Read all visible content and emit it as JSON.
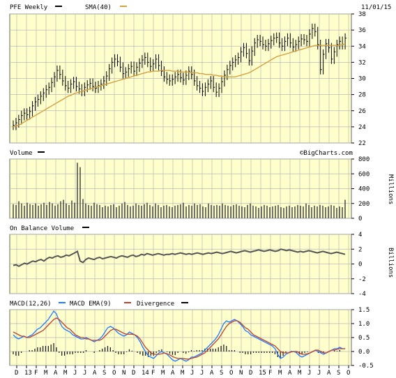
{
  "header": {
    "ticker_label": "PFE Weekly",
    "sma_label": "SMA(40)",
    "date": "11/01/15"
  },
  "panels": {
    "volume": {
      "label": "Volume",
      "unit": "Millions",
      "credit": "©BigCharts.com"
    },
    "obv": {
      "label": "On Balance Volume",
      "unit": "Billions"
    },
    "macd": {
      "label_macd": "MACD(12,26)",
      "label_ema": "MACD EMA(9)",
      "label_div": "Divergence"
    }
  },
  "colors": {
    "plot_bg": "#ffffcc",
    "grid": "#b8b8b8",
    "price": "#000000",
    "sma": "#d4a040",
    "volume": "#444444",
    "obv": "#555555",
    "macd": "#1e7cff",
    "macd_ema": "#c04030",
    "divergence": "#111111"
  },
  "chart_data": [
    {
      "type": "ohlc",
      "title": "PFE Weekly",
      "x_ticks": [
        "D",
        "13",
        "F",
        "M",
        "A",
        "M",
        "J",
        "J",
        "A",
        "S",
        "O",
        "N",
        "D",
        "14",
        "F",
        "M",
        "A",
        "M",
        "J",
        "J",
        "A",
        "S",
        "O",
        "N",
        "D",
        "15",
        "F",
        "M",
        "A",
        "M",
        "J",
        "J",
        "A",
        "S",
        "O"
      ],
      "ylim": [
        22,
        38
      ],
      "y_ticks": [
        22,
        24,
        26,
        28,
        30,
        32,
        34,
        36,
        38
      ],
      "series": [
        {
          "name": "PFE Weekly",
          "kind": "weekly_close",
          "values": [
            24.2,
            24.5,
            24.9,
            25.4,
            25.7,
            25.5,
            25.9,
            26.6,
            27.1,
            27.4,
            27.8,
            28.2,
            28.6,
            28.9,
            29.5,
            30.2,
            31.0,
            30.5,
            29.7,
            29.1,
            28.8,
            29.3,
            29.6,
            29.0,
            28.7,
            28.4,
            28.9,
            29.2,
            29.4,
            29.0,
            28.8,
            29.1,
            29.3,
            29.7,
            30.3,
            31.2,
            32.0,
            32.4,
            32.1,
            31.4,
            30.6,
            30.8,
            31.2,
            31.5,
            30.9,
            31.4,
            31.9,
            32.3,
            32.6,
            32.0,
            31.5,
            31.8,
            32.4,
            31.6,
            30.9,
            30.2,
            29.9,
            29.7,
            29.9,
            30.2,
            30.5,
            30.1,
            29.8,
            30.4,
            30.9,
            30.5,
            29.7,
            29.1,
            28.8,
            28.4,
            28.9,
            29.3,
            29.7,
            28.9,
            28.3,
            28.8,
            29.6,
            30.4,
            31.1,
            31.6,
            32.0,
            32.3,
            32.6,
            33.3,
            33.8,
            33.1,
            32.2,
            33.4,
            34.4,
            34.8,
            34.6,
            34.2,
            34.0,
            34.3,
            34.7,
            35.0,
            35.1,
            34.4,
            34.0,
            34.6,
            35.0,
            34.4,
            33.9,
            34.2,
            34.6,
            34.9,
            34.8,
            34.6,
            35.5,
            36.2,
            35.8,
            34.2,
            31.1,
            33.0,
            34.3,
            33.8,
            32.4,
            33.3,
            34.2,
            34.6,
            34.2,
            35.0
          ]
        },
        {
          "name": "SMA(40)",
          "values": [
            24.0,
            24.1,
            24.2,
            24.4,
            24.6,
            24.8,
            25.0,
            25.2,
            25.4,
            25.6,
            25.8,
            26.0,
            26.2,
            26.4,
            26.6,
            26.8,
            27.0,
            27.2,
            27.4,
            27.6,
            27.8,
            27.9,
            28.1,
            28.2,
            28.3,
            28.4,
            28.5,
            28.6,
            28.7,
            28.8,
            28.9,
            29.0,
            29.1,
            29.2,
            29.3,
            29.4,
            29.5,
            29.6,
            29.7,
            29.8,
            29.9,
            30.0,
            30.1,
            30.2,
            30.3,
            30.4,
            30.5,
            30.6,
            30.7,
            30.8,
            30.8,
            30.9,
            30.9,
            30.9,
            31.0,
            31.0,
            31.0,
            31.0,
            30.9,
            30.9,
            30.9,
            30.8,
            30.8,
            30.8,
            30.8,
            30.7,
            30.7,
            30.7,
            30.6,
            30.6,
            30.5,
            30.5,
            30.5,
            30.4,
            30.4,
            30.3,
            30.3,
            30.2,
            30.2,
            30.2,
            30.2,
            30.2,
            30.3,
            30.4,
            30.5,
            30.6,
            30.7,
            30.9,
            31.1,
            31.3,
            31.5,
            31.7,
            31.9,
            32.1,
            32.3,
            32.5,
            32.7,
            32.8,
            32.9,
            33.0,
            33.1,
            33.2,
            33.3,
            33.4,
            33.5,
            33.6,
            33.7,
            33.8,
            33.9,
            34.0,
            34.1,
            34.1,
            34.1,
            34.1,
            34.1,
            34.1,
            34.1,
            34.1,
            34.1,
            34.1,
            34.2,
            34.3
          ]
        }
      ]
    },
    {
      "type": "bar",
      "title": "Volume",
      "ylabel": "Millions",
      "ylim": [
        0,
        800
      ],
      "y_ticks": [
        0,
        200,
        400,
        600,
        800
      ],
      "values": [
        190,
        180,
        230,
        200,
        170,
        210,
        190,
        180,
        200,
        170,
        190,
        210,
        180,
        220,
        200,
        170,
        190,
        230,
        250,
        200,
        180,
        240,
        210,
        750,
        690,
        260,
        200,
        180,
        170,
        210,
        190,
        180,
        150,
        170,
        160,
        180,
        190,
        150,
        170,
        200,
        220,
        180,
        160,
        170,
        200,
        180,
        170,
        190,
        210,
        180,
        160,
        200,
        180,
        150,
        170,
        180,
        160,
        150,
        170,
        180,
        190,
        210,
        160,
        180,
        170,
        200,
        180,
        190,
        160,
        150,
        200,
        180,
        170,
        180,
        170,
        200,
        180,
        170,
        160,
        180,
        190,
        170,
        160,
        150,
        180,
        200,
        170,
        160,
        140,
        160,
        180,
        170,
        150,
        160,
        170,
        180,
        150,
        140,
        160,
        170,
        150,
        160,
        180,
        170,
        160,
        200,
        180,
        150,
        170,
        160,
        180,
        170,
        150,
        160,
        180,
        170,
        140,
        160,
        150,
        250
      ]
    },
    {
      "type": "line",
      "title": "On Balance Volume",
      "ylabel": "Billions",
      "ylim": [
        -4,
        4
      ],
      "y_ticks": [
        -4,
        -2,
        0,
        2,
        4
      ],
      "values": [
        -0.2,
        -0.1,
        -0.3,
        -0.1,
        0.1,
        0.0,
        0.2,
        0.4,
        0.3,
        0.5,
        0.6,
        0.4,
        0.7,
        0.9,
        0.8,
        1.0,
        1.1,
        0.9,
        1.0,
        1.2,
        1.1,
        1.3,
        1.5,
        1.7,
        0.4,
        0.2,
        0.6,
        0.8,
        0.7,
        0.6,
        0.8,
        0.9,
        0.7,
        0.8,
        0.9,
        1.0,
        0.9,
        0.8,
        1.0,
        1.1,
        1.0,
        0.9,
        1.1,
        1.2,
        1.0,
        1.1,
        1.3,
        1.2,
        1.4,
        1.3,
        1.2,
        1.3,
        1.4,
        1.3,
        1.2,
        1.3,
        1.3,
        1.4,
        1.3,
        1.4,
        1.5,
        1.4,
        1.3,
        1.4,
        1.3,
        1.4,
        1.5,
        1.4,
        1.3,
        1.4,
        1.5,
        1.4,
        1.5,
        1.6,
        1.5,
        1.4,
        1.5,
        1.6,
        1.7,
        1.6,
        1.5,
        1.6,
        1.7,
        1.8,
        1.7,
        1.6,
        1.7,
        1.8,
        1.9,
        1.8,
        1.7,
        1.8,
        1.9,
        1.8,
        1.7,
        1.8,
        2.0,
        1.9,
        1.8,
        1.9,
        1.8,
        1.7,
        1.6,
        1.7,
        1.6,
        1.7,
        1.8,
        1.7,
        1.6,
        1.5,
        1.6,
        1.7,
        1.6,
        1.5,
        1.4,
        1.5,
        1.6,
        1.5,
        1.4,
        1.3
      ]
    },
    {
      "type": "line",
      "title": "MACD",
      "ylim": [
        -0.5,
        1.5
      ],
      "y_ticks": [
        -0.5,
        0.0,
        0.5,
        1.0,
        1.5
      ],
      "series": [
        {
          "name": "MACD(12,26)",
          "values": [
            0.6,
            0.5,
            0.45,
            0.5,
            0.55,
            0.5,
            0.55,
            0.6,
            0.7,
            0.8,
            0.85,
            0.95,
            1.05,
            1.15,
            1.3,
            1.45,
            1.35,
            1.1,
            0.9,
            0.8,
            0.75,
            0.7,
            0.6,
            0.55,
            0.5,
            0.45,
            0.45,
            0.5,
            0.45,
            0.4,
            0.35,
            0.4,
            0.45,
            0.55,
            0.7,
            0.85,
            0.9,
            0.85,
            0.75,
            0.65,
            0.6,
            0.55,
            0.6,
            0.7,
            0.65,
            0.6,
            0.5,
            0.35,
            0.15,
            0.0,
            -0.15,
            -0.2,
            -0.25,
            -0.15,
            -0.05,
            0.0,
            -0.05,
            -0.1,
            -0.2,
            -0.3,
            -0.35,
            -0.3,
            -0.25,
            -0.3,
            -0.35,
            -0.3,
            -0.2,
            -0.2,
            -0.15,
            -0.1,
            -0.05,
            0.05,
            0.15,
            0.25,
            0.35,
            0.45,
            0.6,
            0.8,
            1.0,
            1.1,
            1.05,
            1.1,
            1.15,
            1.1,
            1.0,
            0.9,
            0.75,
            0.7,
            0.6,
            0.55,
            0.5,
            0.45,
            0.4,
            0.35,
            0.3,
            0.25,
            0.2,
            0.1,
            -0.1,
            -0.25,
            -0.2,
            -0.1,
            -0.05,
            0.0,
            0.0,
            -0.05,
            -0.15,
            -0.2,
            -0.15,
            -0.1,
            -0.05,
            0.0,
            0.05,
            0.0,
            -0.05,
            -0.1,
            -0.05,
            0.0,
            0.05,
            0.1,
            0.1,
            0.15,
            0.1,
            0.1
          ]
        },
        {
          "name": "MACD EMA(9)",
          "values": [
            0.7,
            0.65,
            0.6,
            0.55,
            0.55,
            0.5,
            0.5,
            0.55,
            0.6,
            0.65,
            0.7,
            0.75,
            0.85,
            0.95,
            1.05,
            1.15,
            1.2,
            1.15,
            1.05,
            0.95,
            0.85,
            0.8,
            0.7,
            0.6,
            0.55,
            0.5,
            0.5,
            0.45,
            0.45,
            0.4,
            0.4,
            0.4,
            0.4,
            0.45,
            0.55,
            0.65,
            0.75,
            0.8,
            0.8,
            0.75,
            0.7,
            0.65,
            0.62,
            0.62,
            0.62,
            0.6,
            0.55,
            0.45,
            0.3,
            0.15,
            0.05,
            -0.05,
            -0.1,
            -0.1,
            -0.1,
            -0.08,
            -0.05,
            -0.08,
            -0.12,
            -0.18,
            -0.22,
            -0.25,
            -0.25,
            -0.25,
            -0.27,
            -0.27,
            -0.25,
            -0.22,
            -0.2,
            -0.15,
            -0.1,
            -0.05,
            0.05,
            0.15,
            0.25,
            0.35,
            0.45,
            0.6,
            0.75,
            0.9,
            1.0,
            1.05,
            1.1,
            1.1,
            1.05,
            0.95,
            0.85,
            0.8,
            0.7,
            0.6,
            0.55,
            0.5,
            0.45,
            0.4,
            0.35,
            0.3,
            0.25,
            0.2,
            0.1,
            0.0,
            -0.05,
            -0.05,
            -0.05,
            -0.02,
            0.0,
            0.0,
            -0.05,
            -0.1,
            -0.1,
            -0.08,
            -0.05,
            0.0,
            0.05,
            0.05,
            0.0,
            -0.05,
            -0.05,
            0.0,
            0.05,
            0.05,
            0.08,
            0.1,
            0.1,
            0.1
          ]
        },
        {
          "name": "Divergence",
          "values": [
            -0.1,
            -0.15,
            -0.15,
            -0.05,
            0.0,
            0.0,
            0.05,
            0.05,
            0.1,
            0.15,
            0.15,
            0.2,
            0.2,
            0.2,
            0.25,
            0.3,
            0.15,
            -0.05,
            -0.15,
            -0.15,
            -0.1,
            -0.1,
            -0.1,
            -0.05,
            -0.05,
            -0.05,
            -0.05,
            0.05,
            0.0,
            0.0,
            -0.05,
            0.0,
            0.05,
            0.1,
            0.15,
            0.2,
            0.15,
            0.05,
            -0.05,
            -0.1,
            -0.1,
            -0.1,
            -0.02,
            0.08,
            0.03,
            0.0,
            -0.05,
            -0.1,
            -0.15,
            -0.15,
            -0.2,
            -0.15,
            -0.15,
            -0.05,
            0.05,
            0.08,
            0.0,
            -0.02,
            -0.08,
            -0.12,
            -0.13,
            -0.05,
            0.0,
            -0.05,
            -0.08,
            -0.03,
            0.05,
            0.02,
            0.05,
            0.05,
            0.05,
            0.1,
            0.1,
            0.1,
            0.1,
            0.1,
            0.15,
            0.2,
            0.25,
            0.2,
            0.05,
            0.05,
            0.05,
            0.0,
            -0.05,
            -0.05,
            -0.1,
            -0.1,
            -0.1,
            -0.05,
            -0.05,
            -0.05,
            -0.05,
            -0.05,
            -0.05,
            -0.05,
            -0.05,
            -0.1,
            -0.2,
            -0.25,
            -0.15,
            -0.05,
            0.0,
            0.02,
            0.0,
            -0.05,
            -0.1,
            -0.1,
            -0.05,
            -0.02,
            0.0,
            0.0,
            0.0,
            -0.05,
            -0.05,
            -0.05,
            0.0,
            0.0,
            0.0,
            0.05,
            0.02,
            0.05,
            0.0,
            0.0
          ]
        }
      ]
    }
  ]
}
